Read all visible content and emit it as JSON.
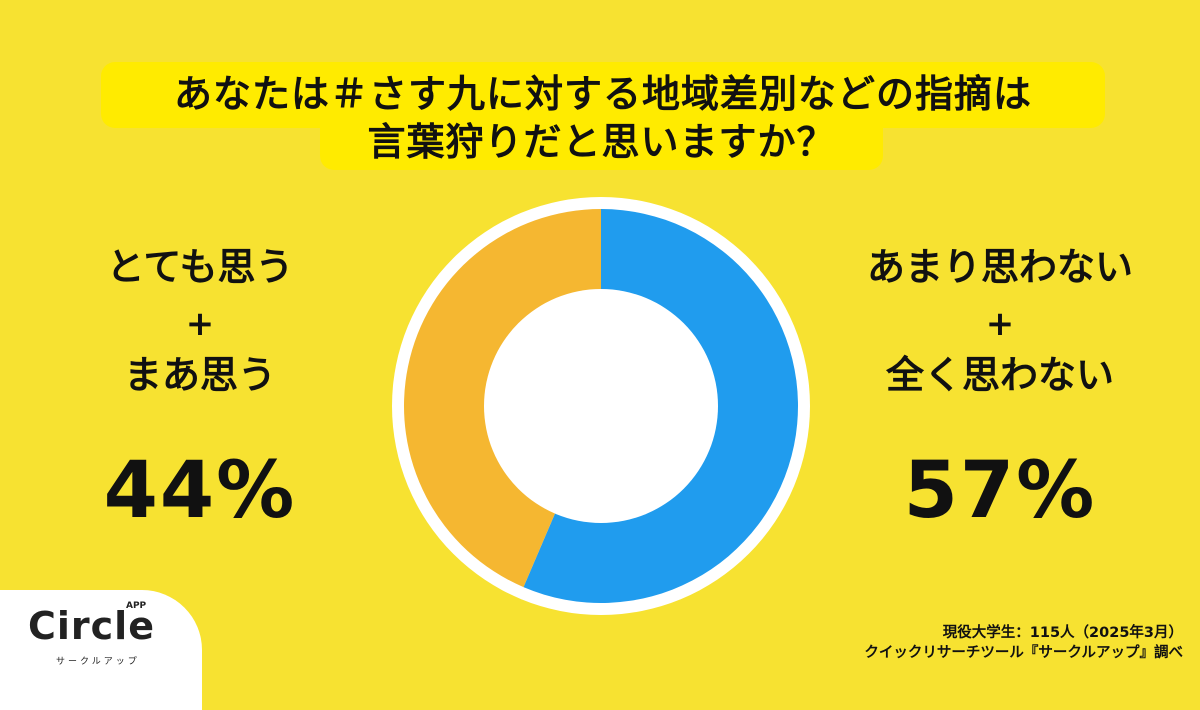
{
  "title": {
    "line1": "あなたは＃さす九に対する地域差別などの指摘は",
    "line2": "言葉狩りだと思いますか？"
  },
  "left_group": {
    "label1": "とても思う",
    "plus": "+",
    "label2": "まあ思う",
    "percent": "44%"
  },
  "right_group": {
    "label1": "あまり思わない",
    "plus": "+",
    "label2": "全く思わない",
    "percent": "57%"
  },
  "colors": {
    "background": "#F7E231",
    "title_highlight": "#FFEB00",
    "agree": "#F5B731",
    "disagree": "#209CEE",
    "ring": "#FFFFFF"
  },
  "logo": {
    "name": "Circle",
    "badge": "APP",
    "sub": "サークルアップ"
  },
  "source": {
    "line1": "現役大学生：115人（2025年3月）",
    "line2": "クイックリサーチツール『サークルアップ』調べ"
  },
  "chart_data": {
    "type": "pie",
    "subtype": "donut",
    "title": "あなたは＃さす九に対する地域差別などの指摘は言葉狩りだと思いますか？",
    "categories": [
      "とても思う＋まあ思う",
      "あまり思わない＋全く思わない"
    ],
    "values": [
      44,
      57
    ],
    "unit": "%",
    "colors": [
      "#F5B731",
      "#209CEE"
    ],
    "start_angle": "12 o'clock, clockwise from blue segment",
    "legend": "side labels (left: agree, right: disagree)",
    "sample": "現役大学生：115人（2025年3月）"
  }
}
